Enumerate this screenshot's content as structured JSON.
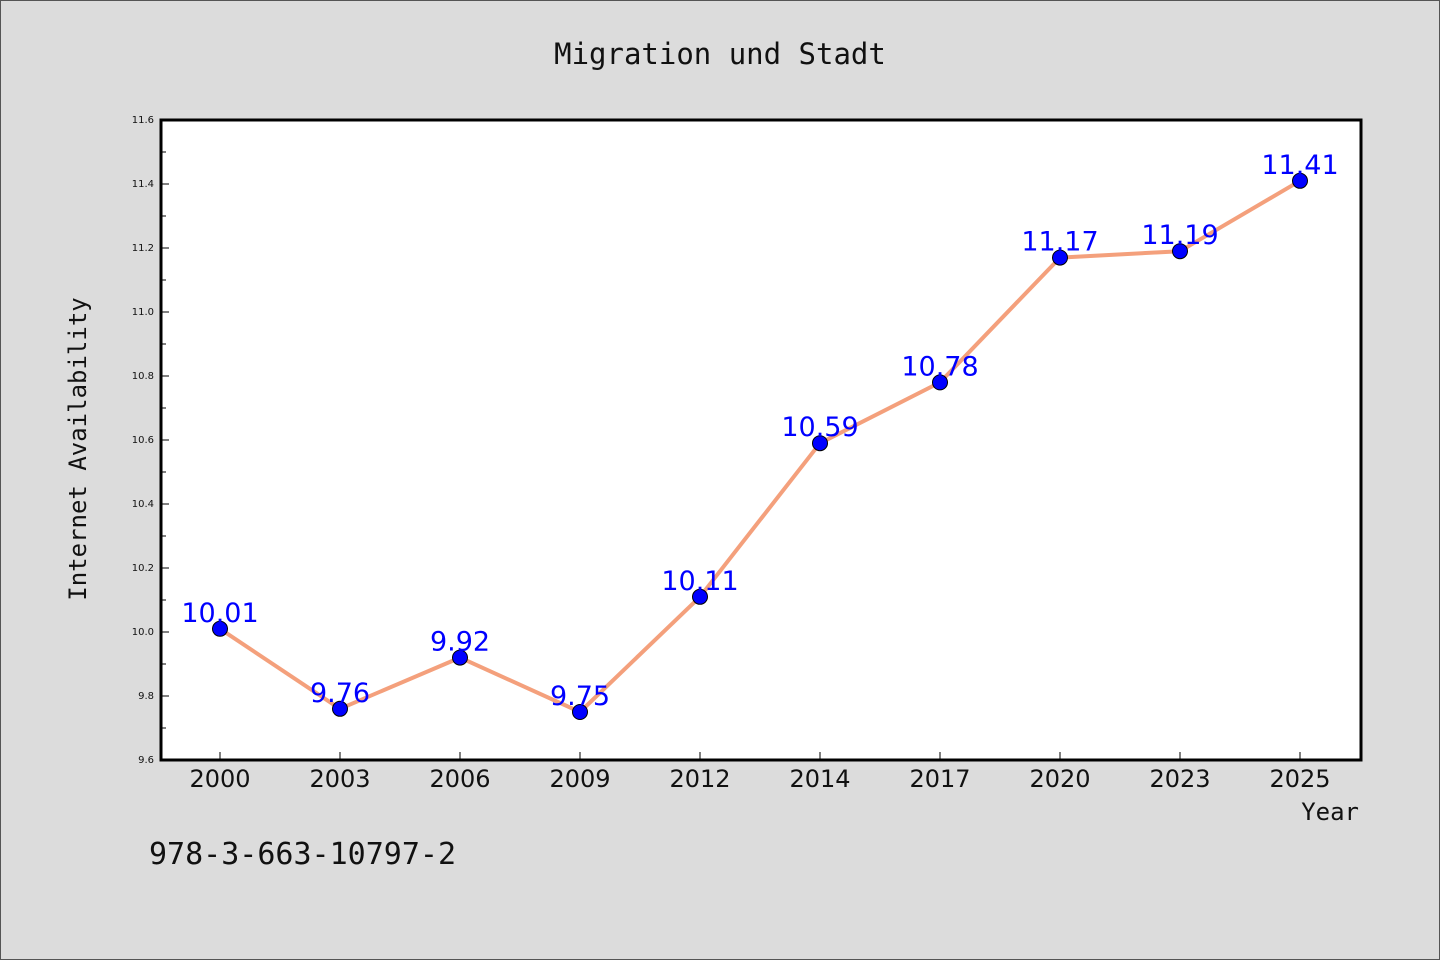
{
  "chart_data": {
    "type": "line",
    "title": "Migration und Stadt",
    "xlabel": "Year",
    "ylabel": "Internet Availability",
    "categories": [
      "2000",
      "2003",
      "2006",
      "2009",
      "2012",
      "2014",
      "2017",
      "2020",
      "2023",
      "2025"
    ],
    "values": [
      10.01,
      9.76,
      9.92,
      9.75,
      10.11,
      10.59,
      10.78,
      11.17,
      11.19,
      11.41
    ],
    "yticks": [
      "9.6",
      "9.8",
      "10.0",
      "10.2",
      "10.4",
      "10.6",
      "10.8",
      "11.0",
      "11.2",
      "11.4",
      "11.6"
    ],
    "ylim": [
      9.6,
      11.6
    ],
    "grid": false,
    "line_color": "#f4a07c",
    "marker_color": "#0000ff",
    "label_color": "#0000ff"
  },
  "footer": {
    "text": "978-3-663-10797-2"
  }
}
